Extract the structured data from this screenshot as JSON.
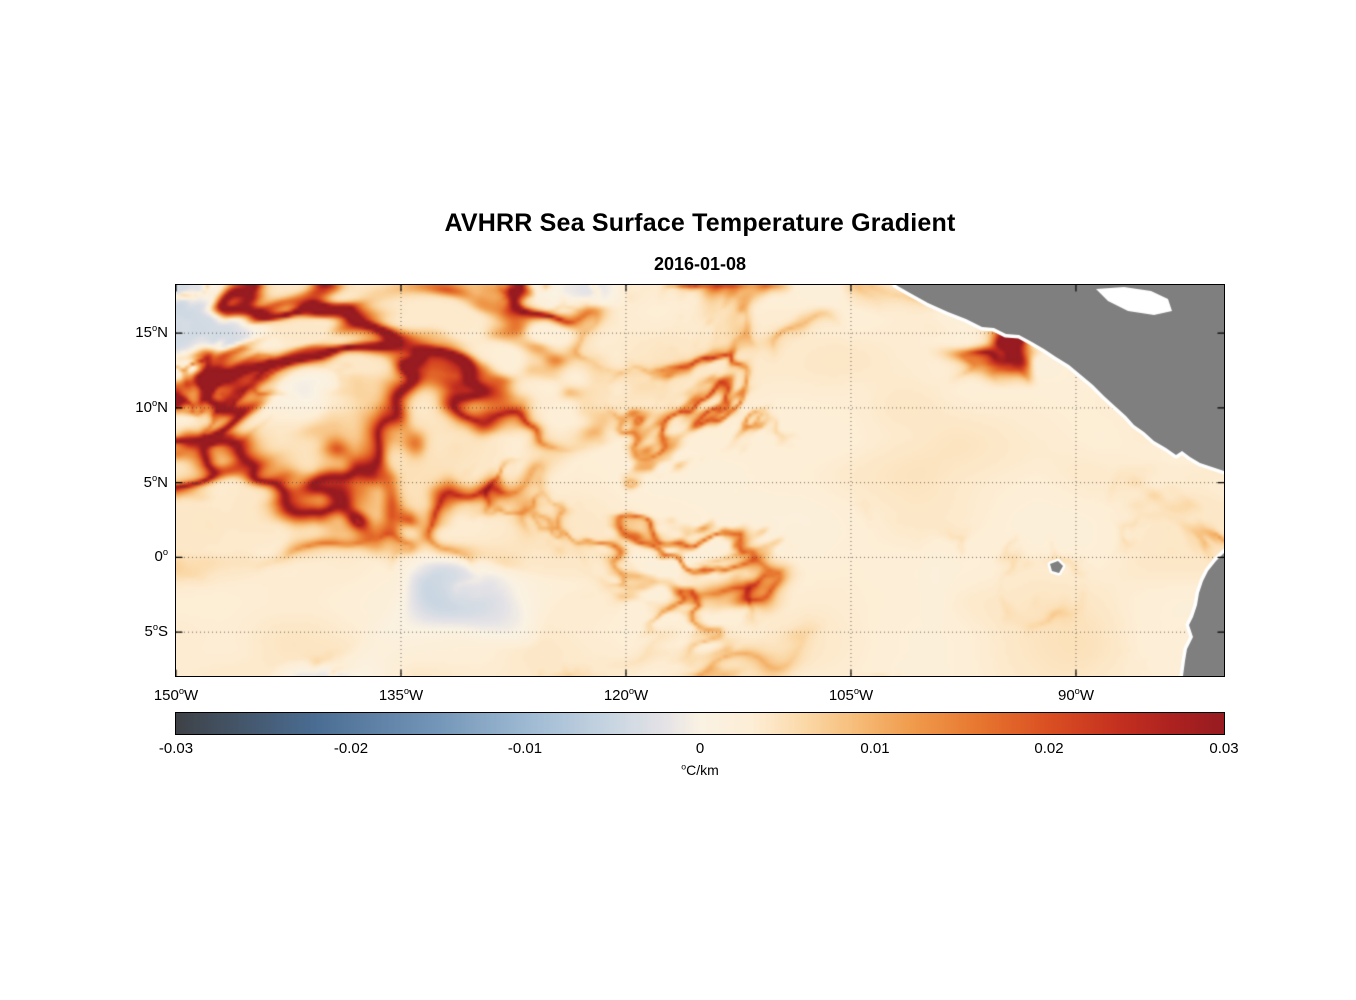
{
  "title": "AVHRR Sea Surface Temperature Gradient",
  "date": "2016-01-08",
  "deg_symbol": "o",
  "y_axis": {
    "ticks": [
      {
        "value": "15",
        "hem": "N"
      },
      {
        "value": "10",
        "hem": "N"
      },
      {
        "value": "5",
        "hem": "N"
      },
      {
        "value": "0",
        "hem": ""
      },
      {
        "value": "5",
        "hem": "S"
      }
    ]
  },
  "x_axis": {
    "ticks": [
      {
        "value": "150",
        "hem": "W"
      },
      {
        "value": "135",
        "hem": "W"
      },
      {
        "value": "120",
        "hem": "W"
      },
      {
        "value": "105",
        "hem": "W"
      },
      {
        "value": "90",
        "hem": "W"
      }
    ]
  },
  "colorbar": {
    "tick_labels": [
      "-0.03",
      "-0.02",
      "-0.01",
      "0",
      "0.01",
      "0.02",
      "0.03"
    ],
    "unit_sup": "o",
    "unit_text": "C/km"
  },
  "chart_data": {
    "type": "heatmap",
    "title": "AVHRR Sea Surface Temperature Gradient",
    "date": "2016-01-08",
    "variable": "sea surface temperature gradient",
    "units": "°C/km",
    "value_range": [
      -0.03,
      0.03
    ],
    "lon_deg_west_range": [
      150,
      80.13
    ],
    "lat_deg_range": [
      -7.93,
      18.22
    ],
    "x_ticks_deg_west": [
      150,
      135,
      120,
      105,
      90
    ],
    "y_ticks_deg": [
      15,
      10,
      5,
      0,
      -5
    ],
    "grid": "dotted",
    "colormap_stops": [
      [
        0.0,
        "#3e4247"
      ],
      [
        0.133,
        "#4a6d93"
      ],
      [
        0.25,
        "#7496b8"
      ],
      [
        0.333,
        "#9db9d2"
      ],
      [
        0.417,
        "#c9d6e2"
      ],
      [
        0.467,
        "#e5e3e6"
      ],
      [
        0.5,
        "#faf2e3"
      ],
      [
        0.55,
        "#fdeed6"
      ],
      [
        0.6,
        "#fbd9a8"
      ],
      [
        0.65,
        "#f6bc78"
      ],
      [
        0.7,
        "#f09d4e"
      ],
      [
        0.767,
        "#e7762f"
      ],
      [
        0.833,
        "#da4f22"
      ],
      [
        0.9,
        "#c4301f"
      ],
      [
        0.95,
        "#ad2220"
      ],
      [
        1.0,
        "#971b20"
      ]
    ],
    "land_color": "#7f7f7f",
    "coast_halo_color": "#ffffff",
    "land": {
      "central_america_coast": [
        [
          720,
          0
        ],
        [
          734,
          8
        ],
        [
          752,
          18
        ],
        [
          772,
          27
        ],
        [
          790,
          34
        ],
        [
          806,
          42
        ],
        [
          818,
          43
        ],
        [
          830,
          49
        ],
        [
          843,
          50
        ],
        [
          856,
          57
        ],
        [
          868,
          64
        ],
        [
          880,
          72
        ],
        [
          893,
          80
        ],
        [
          905,
          90
        ],
        [
          917,
          100
        ],
        [
          929,
          112
        ],
        [
          940,
          122
        ],
        [
          950,
          131
        ],
        [
          958,
          140
        ],
        [
          968,
          147
        ],
        [
          978,
          156
        ],
        [
          990,
          163
        ],
        [
          1000,
          170
        ],
        [
          1006,
          166
        ],
        [
          1014,
          172
        ],
        [
          1024,
          178
        ],
        [
          1036,
          182
        ],
        [
          1048,
          186
        ]
      ],
      "caribbean_inlet": [
        [
          920,
          4
        ],
        [
          948,
          2
        ],
        [
          975,
          6
        ],
        [
          992,
          14
        ],
        [
          996,
          26
        ],
        [
          978,
          30
        ],
        [
          952,
          26
        ],
        [
          932,
          16
        ]
      ],
      "south_america_coast": [
        [
          1048,
          268
        ],
        [
          1040,
          276
        ],
        [
          1032,
          286
        ],
        [
          1027,
          296
        ],
        [
          1023,
          308
        ],
        [
          1021,
          320
        ],
        [
          1017,
          332
        ],
        [
          1013,
          340
        ],
        [
          1017,
          352
        ],
        [
          1011,
          364
        ],
        [
          1009,
          376
        ],
        [
          1007,
          391
        ]
      ],
      "galapagos": [
        [
          874,
          279
        ],
        [
          882,
          276
        ],
        [
          887,
          281
        ],
        [
          883,
          288
        ],
        [
          876,
          286
        ]
      ]
    },
    "features": [
      "orange-red filament fronts concentrated across 12-17N",
      "equatorial front near 0-2N east of 110W",
      "strong gradients along Central American and South American coasts",
      "pale lavender patches of weak negative gradient over a cream background"
    ],
    "field_render": {
      "seed": 20160108,
      "background_value": 0.0015,
      "ridge_amp_large": 0.03,
      "ridge_amp_small": 0.016,
      "negative_patch_amp": 0.007
    }
  }
}
